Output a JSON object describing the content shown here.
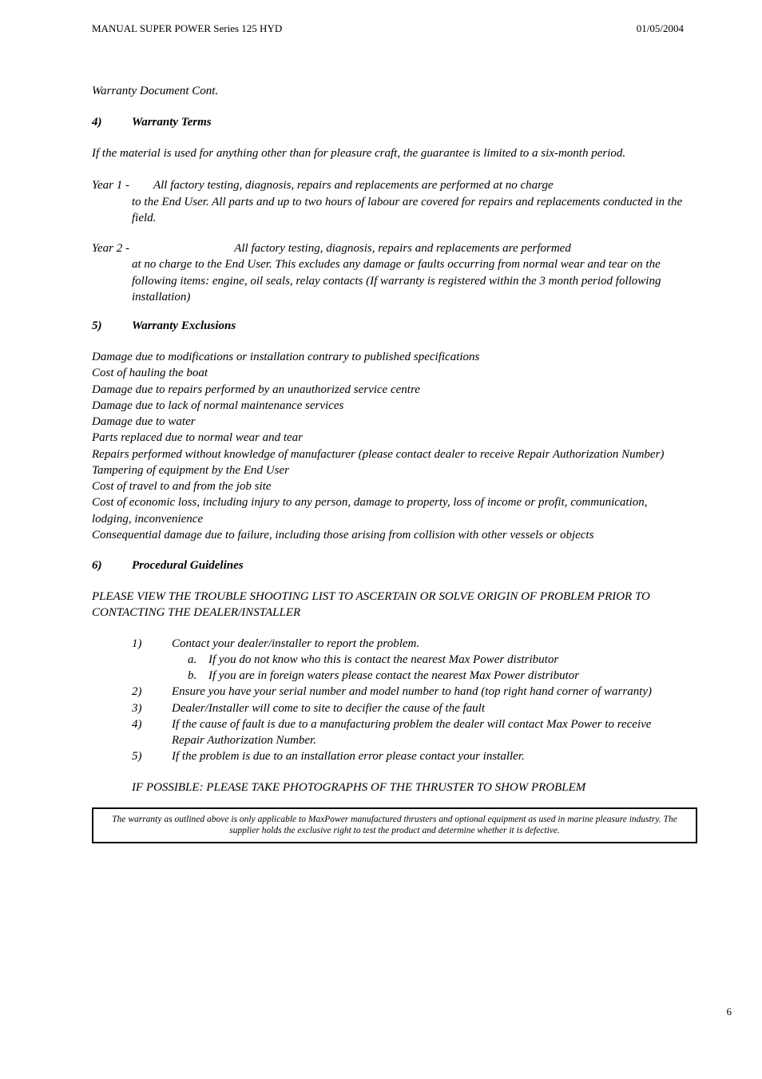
{
  "header": {
    "left": "MANUAL SUPER POWER Series 125 HYD",
    "right": "01/05/2004"
  },
  "cont": "Warranty Document Cont.",
  "s4": {
    "num": "4)",
    "title": "Warranty Terms",
    "intro": "If the material is used for anything other than for pleasure craft, the guarantee is limited to a six-month period.",
    "y1lbl": "Year 1 -",
    "y1": "All factory testing, diagnosis, repairs and replacements are performed at no charge to the End User. All parts and up to two hours of labour are covered for repairs and replacements conducted in the field.",
    "y2lbl": "Year 2 -",
    "y2": "All factory testing, diagnosis, repairs and replacements are performed at no charge to the End User.  This excludes any damage or faults occurring from normal wear and tear on the following items: engine, oil seals, relay contacts (If warranty is registered within the 3 month period following installation)"
  },
  "s5": {
    "num": "5)",
    "title": "Warranty Exclusions",
    "items": [
      "Damage due to modifications or installation contrary to published specifications",
      "Cost of hauling the boat",
      "Damage due to repairs performed by an unauthorized service centre",
      "Damage due to lack of normal maintenance services",
      "Damage due to water",
      "Parts replaced due to normal wear and tear",
      "Repairs performed without knowledge of manufacturer (please contact dealer to receive Repair Authorization Number)",
      "Tampering of equipment by the End User",
      "Cost of travel to and from the job site",
      "Cost of economic loss, including injury to any person, damage to property, loss of income or profit, communication, lodging, inconvenience",
      "Consequential damage due to failure, including those arising from collision with other vessels or objects"
    ]
  },
  "s6": {
    "num": "6)",
    "title": "Procedural Guidelines",
    "trouble": "PLEASE VIEW THE TROUBLE SHOOTING LIST TO ASCERTAIN OR SOLVE ORIGIN OF PROBLEM PRIOR TO CONTACTING THE DEALER/INSTALLER",
    "steps": [
      {
        "n": "1)",
        "t": "Contact your dealer/installer to report the problem.",
        "sub": [
          {
            "n": "a.",
            "t": "If you do not know who this is contact the nearest Max Power distributor"
          },
          {
            "n": "b.",
            "t": "If you are in foreign waters please contact the nearest Max Power distributor"
          }
        ]
      },
      {
        "n": "2)",
        "t": "Ensure you have your serial number and model number to hand (top right hand corner of warranty)"
      },
      {
        "n": "3)",
        "t": "Dealer/Installer will come to site to decifier the cause of the fault"
      },
      {
        "n": "4)",
        "t": "If the cause of fault is due to a manufacturing problem the dealer will contact Max Power to receive Repair Authorization Number."
      },
      {
        "n": "5)",
        "t": " If the problem is due to an installation error please contact your installer."
      }
    ],
    "photo": "IF POSSIBLE: PLEASE TAKE PHOTOGRAPHS OF THE THRUSTER TO SHOW PROBLEM"
  },
  "footbox": "The warranty as outlined above is only applicable to MaxPower manufactured thrusters and optional equipment as used in marine pleasure industry.  The supplier holds the exclusive right to test the product and determine whether it is defective.",
  "pageno": "6"
}
